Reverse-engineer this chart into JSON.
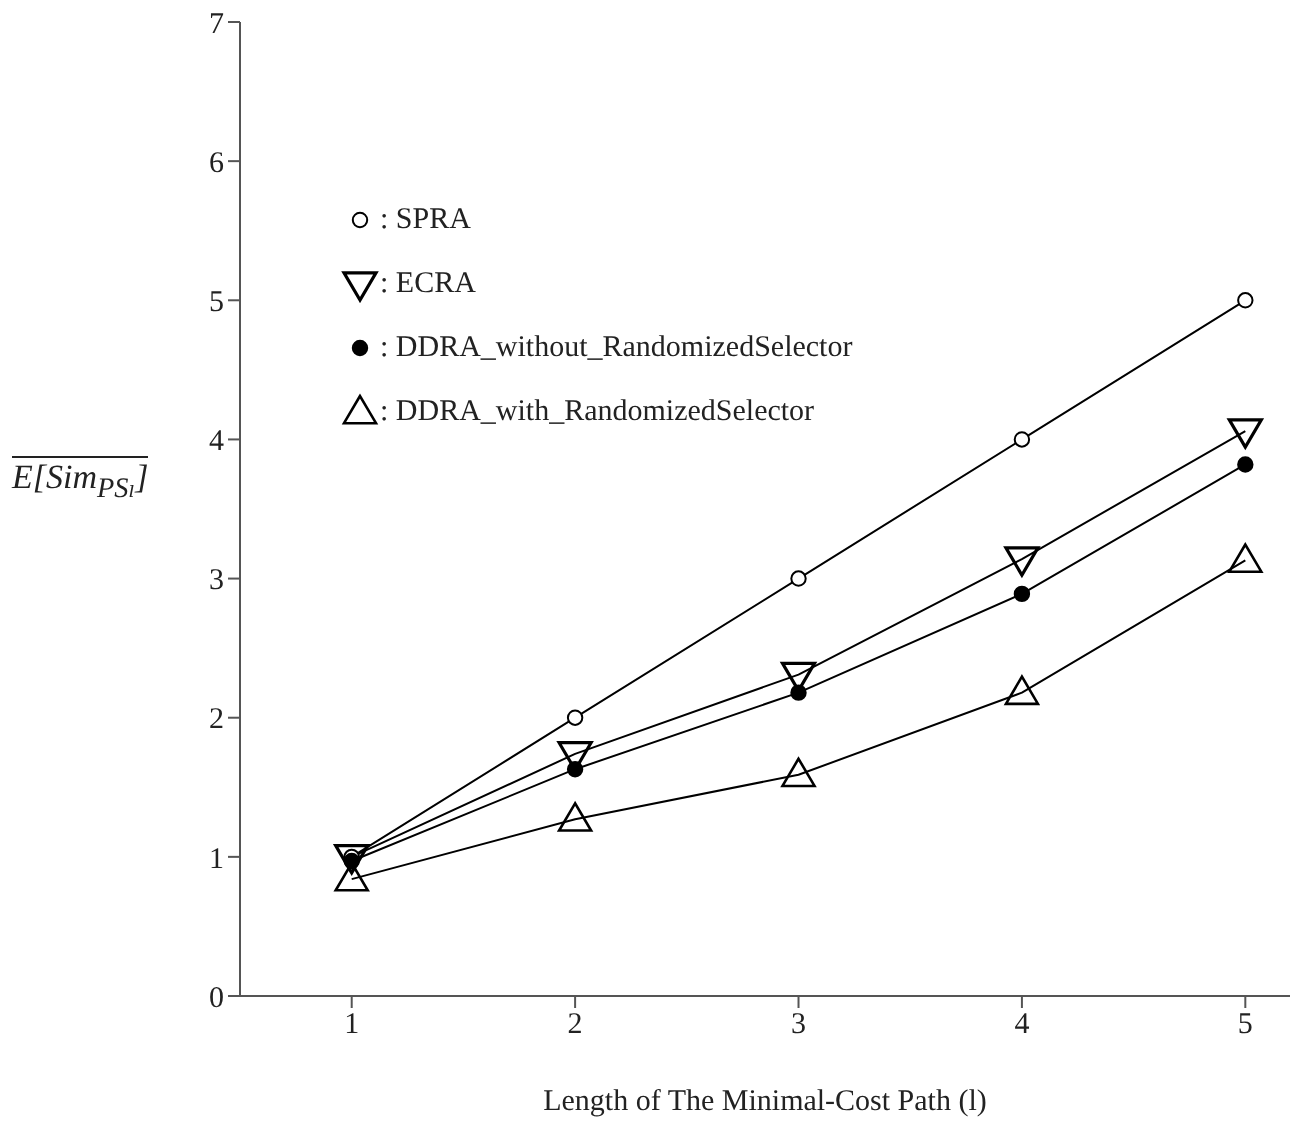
{
  "chart_data": {
    "type": "line",
    "xlabel": "Length of The Minimal-Cost Path (l)",
    "ylabel": "E[Sim$_{PSₗ}$]",
    "x": [
      1,
      2,
      3,
      4,
      5
    ],
    "xlim": [
      0.5,
      5.2
    ],
    "xticks": [
      1,
      2,
      3,
      4,
      5
    ],
    "ylim": [
      0,
      7
    ],
    "yticks": [
      0,
      1,
      2,
      3,
      4,
      5,
      6,
      7
    ],
    "grid": false,
    "legend": "top left",
    "line_style": "solid",
    "series": [
      {
        "name": ": SPRA",
        "color": "#000000",
        "marker": "circle",
        "values": [
          1,
          2,
          3,
          4,
          5
        ]
      },
      {
        "name": ": ECRA",
        "color": "#000000",
        "marker": "triangle-down",
        "values": [
          1.0,
          1.74,
          2.31,
          3.14,
          4.06
        ]
      },
      {
        "name": ": DDRA_without_RandomizedSelector",
        "color": "#000000",
        "marker": "filled-circle",
        "values": [
          0.97,
          1.63,
          2.18,
          2.89,
          3.82
        ]
      },
      {
        "name": ": DDRA_with_RandomizedSelector",
        "color": "#000000",
        "marker": "triangle",
        "values": [
          0.84,
          1.27,
          1.59,
          2.18,
          3.13
        ]
      }
    ]
  }
}
